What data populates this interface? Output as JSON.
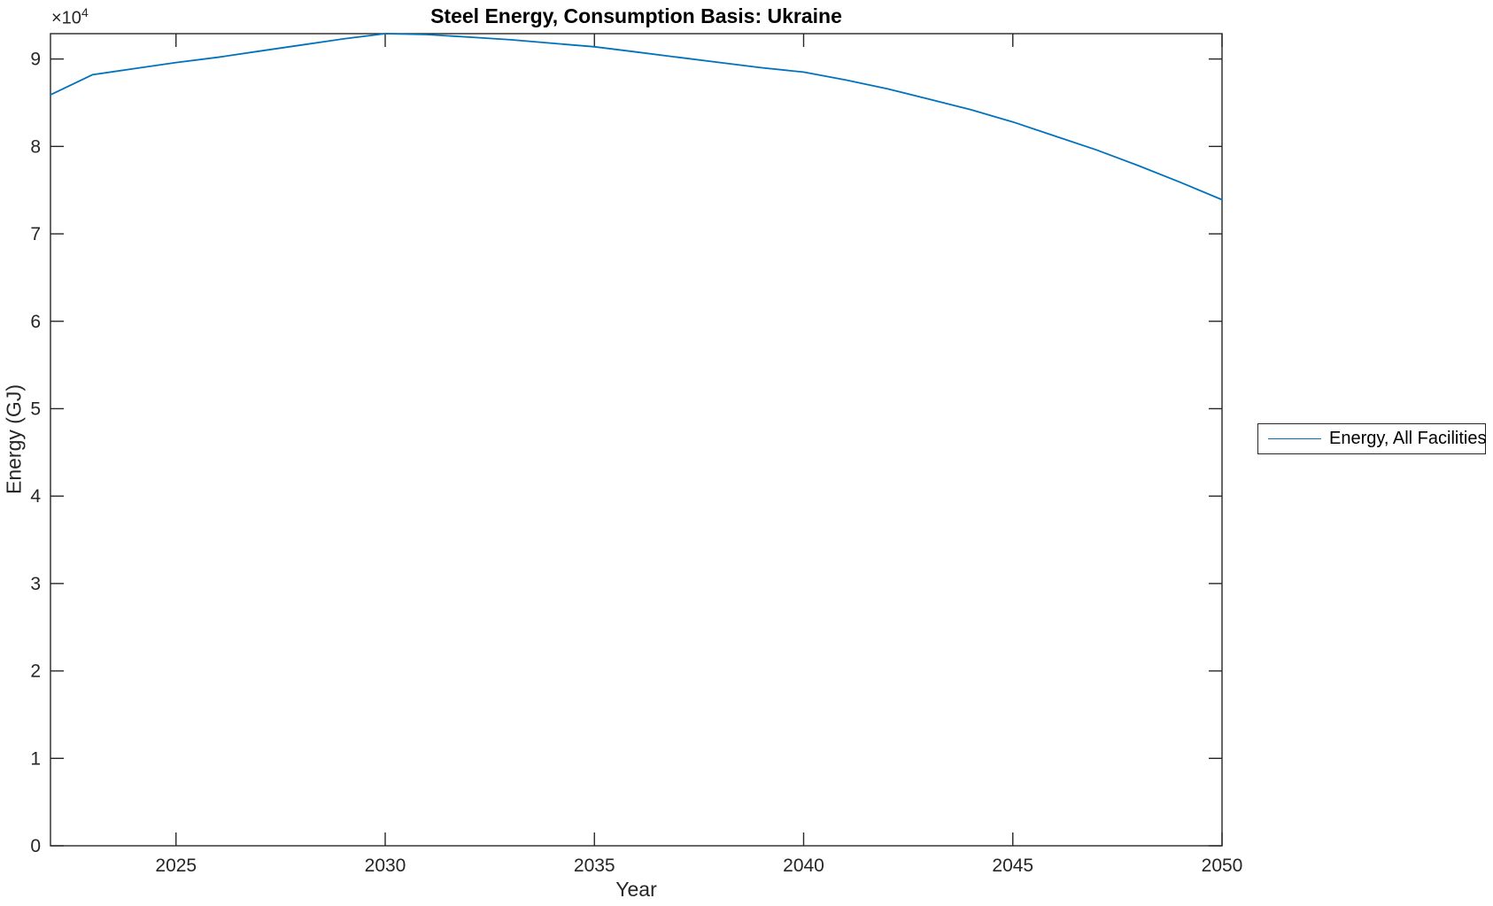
{
  "chart_data": {
    "type": "line",
    "title": "Steel Energy, Consumption Basis: Ukraine",
    "xlabel": "Year",
    "ylabel": "Energy (GJ)",
    "y_axis_multiplier": {
      "times": "×10",
      "exp": "4"
    },
    "xlim": [
      2022,
      2050
    ],
    "ylim": [
      0,
      92900
    ],
    "x_ticks": [
      2025,
      2030,
      2035,
      2040,
      2045,
      2050
    ],
    "y_tick_values": [
      0,
      10000,
      20000,
      30000,
      40000,
      50000,
      60000,
      70000,
      80000,
      90000
    ],
    "y_tick_labels": [
      "0",
      "1",
      "2",
      "3",
      "4",
      "5",
      "6",
      "7",
      "8",
      "9"
    ],
    "grid": false,
    "legend": {
      "position": "right-outside",
      "entries": [
        {
          "label": "Energy, All Facilities",
          "color": "#0072BD"
        }
      ]
    },
    "series": [
      {
        "name": "Energy, All Facilities",
        "color": "#0072BD",
        "x": [
          2022,
          2023,
          2024,
          2025,
          2026,
          2027,
          2028,
          2029,
          2030,
          2031,
          2032,
          2033,
          2034,
          2035,
          2036,
          2037,
          2038,
          2039,
          2040,
          2041,
          2042,
          2043,
          2044,
          2045,
          2046,
          2047,
          2048,
          2049,
          2050
        ],
        "y": [
          85900,
          88200,
          88900,
          89600,
          90200,
          90900,
          91600,
          92300,
          92900,
          92800,
          92500,
          92200,
          91800,
          91400,
          90800,
          90200,
          89600,
          89000,
          88500,
          87600,
          86600,
          85400,
          84200,
          82800,
          81200,
          79600,
          77800,
          75900,
          73900
        ]
      }
    ]
  },
  "colors": {
    "axis": "#262626",
    "tick_text": "#262626",
    "title_text": "#000000",
    "background": "#ffffff"
  }
}
